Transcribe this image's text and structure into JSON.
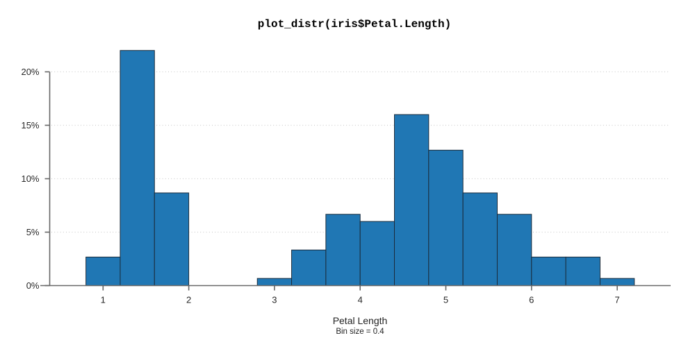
{
  "window": {
    "background": "#ffffff"
  },
  "chart_data": {
    "type": "bar",
    "subtype": "histogram",
    "title": "plot_distr(iris$Petal.Length)",
    "xlabel": "Petal Length",
    "ylabel": "",
    "annotation": "Bin size = 0.4",
    "bin_size": 0.4,
    "x_ticks": [
      "1",
      "2",
      "3",
      "4",
      "5",
      "6",
      "7"
    ],
    "x_tick_values": [
      1,
      2,
      3,
      4,
      5,
      6,
      7
    ],
    "y_ticks": [
      "0%",
      "5%",
      "10%",
      "15%",
      "20%"
    ],
    "y_tick_values": [
      0,
      5,
      10,
      15,
      20
    ],
    "xlim": [
      0.27,
      7.63
    ],
    "ylim": [
      0,
      22.5
    ],
    "grid": "horizontal-dotted",
    "legend": "none",
    "bins": [
      {
        "x0": 0.8,
        "x1": 1.2,
        "pct": 2.67
      },
      {
        "x0": 1.2,
        "x1": 1.6,
        "pct": 22.0
      },
      {
        "x0": 1.6,
        "x1": 2.0,
        "pct": 8.67
      },
      {
        "x0": 2.8,
        "x1": 3.2,
        "pct": 0.67
      },
      {
        "x0": 3.2,
        "x1": 3.6,
        "pct": 3.33
      },
      {
        "x0": 3.6,
        "x1": 4.0,
        "pct": 6.67
      },
      {
        "x0": 4.0,
        "x1": 4.4,
        "pct": 6.0
      },
      {
        "x0": 4.4,
        "x1": 4.8,
        "pct": 16.0
      },
      {
        "x0": 4.8,
        "x1": 5.2,
        "pct": 12.67
      },
      {
        "x0": 5.2,
        "x1": 5.6,
        "pct": 8.67
      },
      {
        "x0": 5.6,
        "x1": 6.0,
        "pct": 6.67
      },
      {
        "x0": 6.0,
        "x1": 6.4,
        "pct": 2.67
      },
      {
        "x0": 6.4,
        "x1": 6.8,
        "pct": 2.67
      },
      {
        "x0": 6.8,
        "x1": 7.2,
        "pct": 0.67
      }
    ],
    "colors": {
      "bar_fill": "#2077b4",
      "bar_edge": "#1b2b3a",
      "axis": "#666666",
      "grid": "#cfcfcf",
      "tick_text": "#262626",
      "title_text": "#000000"
    }
  }
}
